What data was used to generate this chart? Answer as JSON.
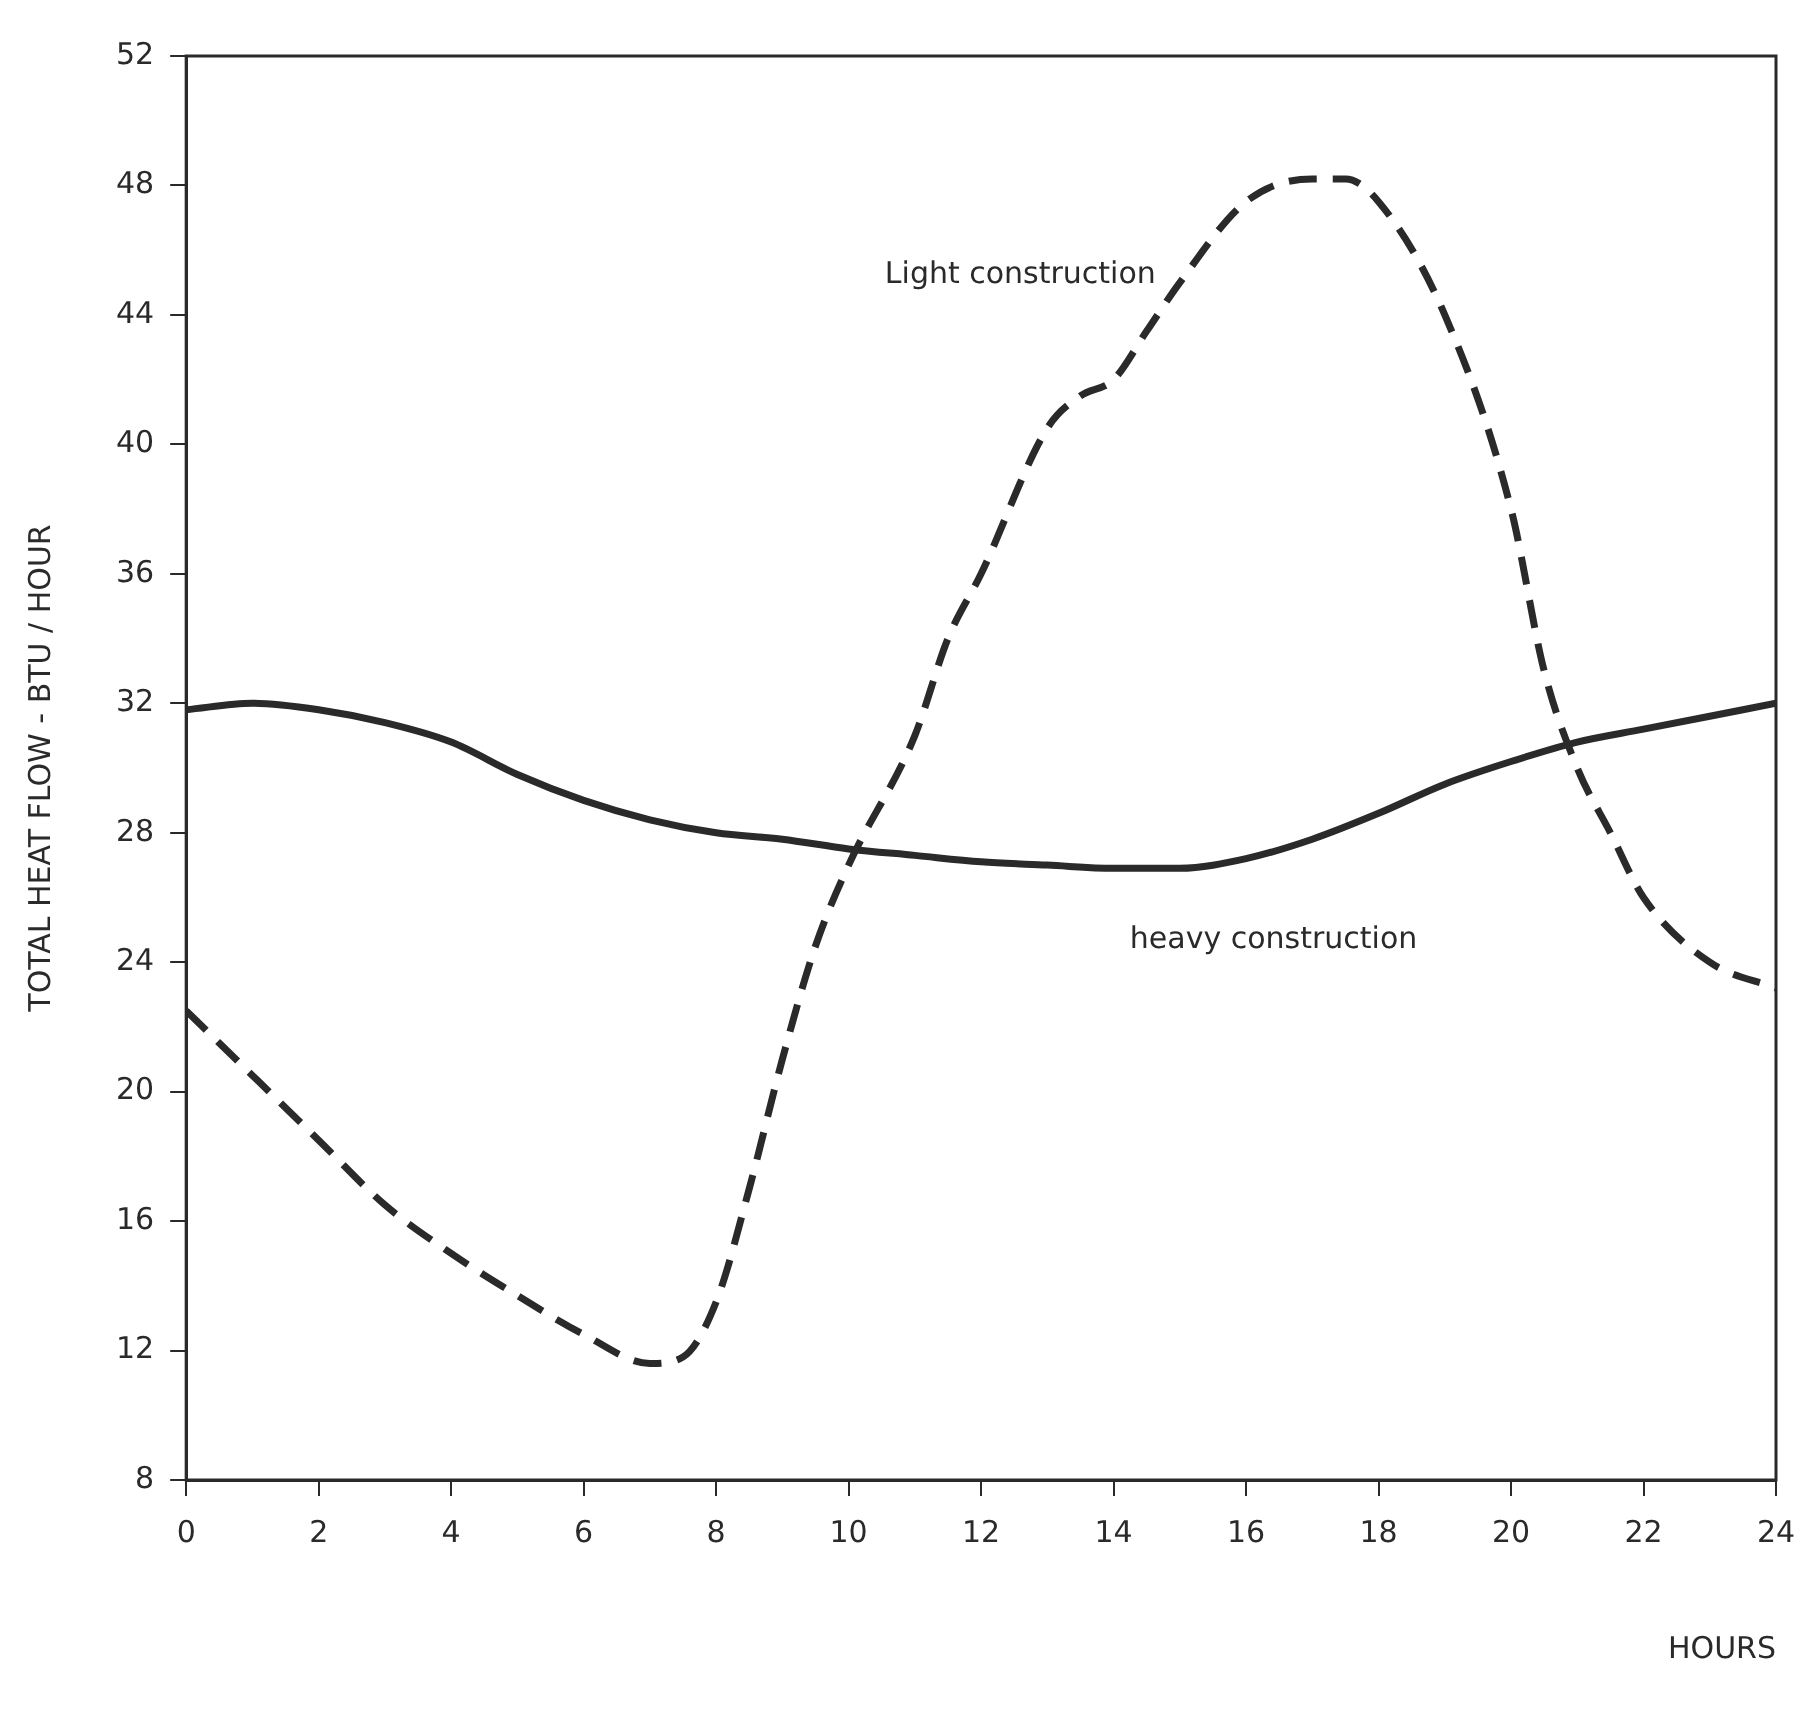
{
  "chart_data": {
    "type": "line",
    "xlabel": "HOURS",
    "ylabel": "TOTAL HEAT FLOW - BTU / HOUR",
    "xlim": [
      0,
      24
    ],
    "xticks": [
      0,
      2,
      4,
      6,
      8,
      10,
      12,
      14,
      16,
      18,
      20,
      22,
      24
    ],
    "ylim": [
      8,
      52
    ],
    "yticks": [
      8,
      12,
      16,
      20,
      24,
      28,
      32,
      36,
      40,
      44,
      48,
      52
    ],
    "grid": false,
    "legend": false,
    "marker": "none",
    "series": [
      {
        "name": "Light construction",
        "color": "#2a2a2a",
        "line_style": "dashed",
        "x": [
          0,
          1,
          2,
          3,
          4,
          5,
          6,
          7,
          7.5,
          8,
          8.5,
          9,
          9.5,
          10,
          11,
          11.5,
          12,
          13,
          13.5,
          14,
          14.5,
          15,
          16,
          17,
          17.5,
          18,
          19,
          20,
          20.5,
          21,
          21.5,
          22,
          23,
          24
        ],
        "values": [
          22.5,
          20.5,
          18.5,
          16.5,
          15,
          13.7,
          12.5,
          11.6,
          11.8,
          13.5,
          17,
          21,
          24.5,
          27,
          31,
          34,
          36,
          40.5,
          41.5,
          42,
          43.5,
          45,
          47.5,
          48.2,
          48.2,
          47.5,
          44,
          38,
          33,
          30,
          28,
          26,
          24,
          23.2
        ]
      },
      {
        "name": "heavy construction",
        "color": "#2a2a2a",
        "line_style": "solid",
        "x": [
          0,
          1,
          2,
          3,
          4,
          5,
          6,
          7,
          8,
          9,
          10,
          11,
          12,
          13,
          14,
          15,
          16,
          17,
          18,
          19,
          20,
          21,
          22,
          23,
          24
        ],
        "values": [
          31.8,
          32,
          31.8,
          31.4,
          30.8,
          29.8,
          29,
          28.4,
          28,
          27.8,
          27.5,
          27.3,
          27.1,
          27,
          26.9,
          26.9,
          27.2,
          27.8,
          28.6,
          29.5,
          30.2,
          30.8,
          31.2,
          31.6,
          32
        ]
      }
    ]
  }
}
